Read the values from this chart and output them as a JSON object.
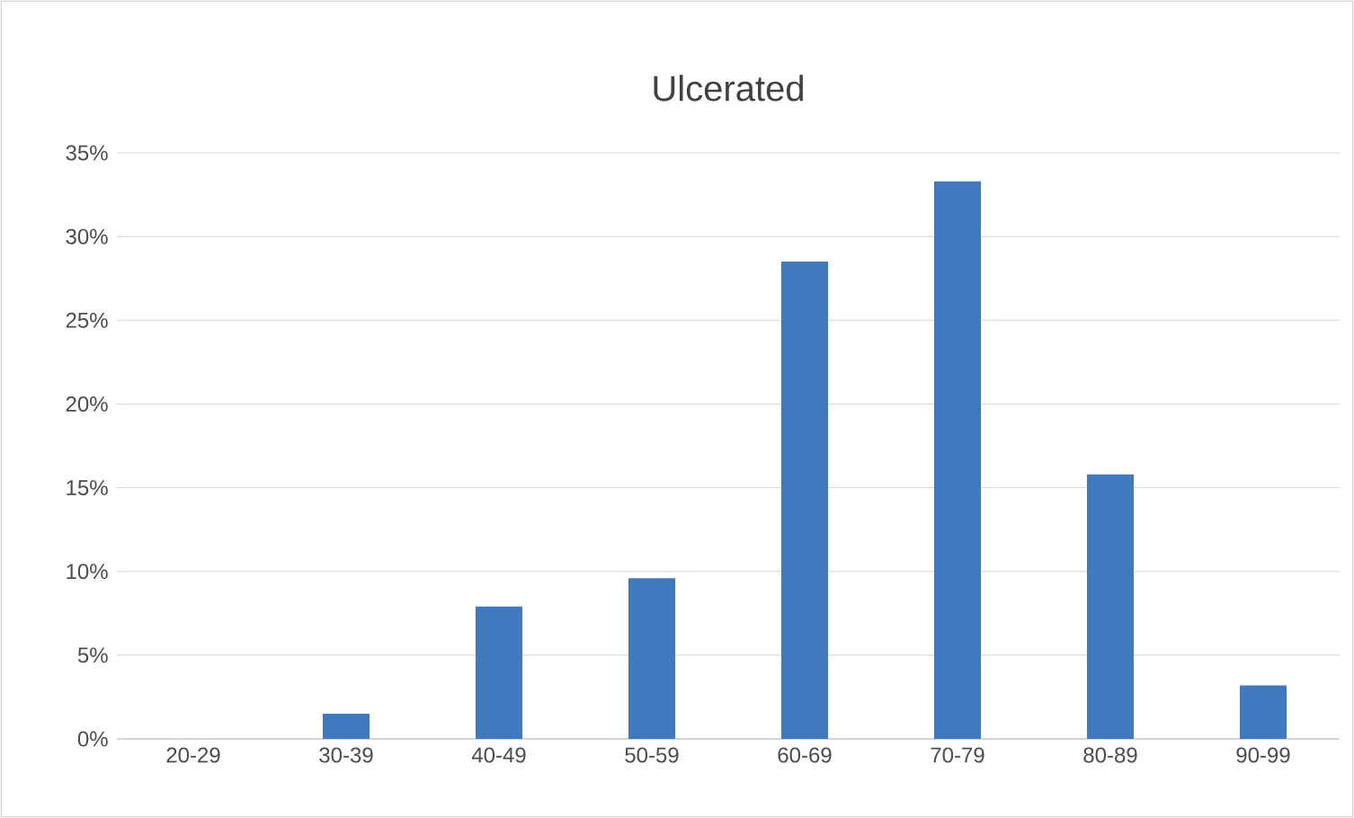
{
  "chart_data": {
    "type": "bar",
    "title": "Ulcerated",
    "categories": [
      "20-29",
      "30-39",
      "40-49",
      "50-59",
      "60-69",
      "70-79",
      "80-89",
      "90-99"
    ],
    "values": [
      0,
      1.5,
      7.9,
      9.6,
      28.5,
      33.3,
      15.8,
      3.2
    ],
    "color": "#4178be",
    "ylim": [
      0,
      35
    ],
    "yticks": [
      {
        "value": 0,
        "label": "0%"
      },
      {
        "value": 5,
        "label": "5%"
      },
      {
        "value": 10,
        "label": "10%"
      },
      {
        "value": 15,
        "label": "15%"
      },
      {
        "value": 20,
        "label": "20%"
      },
      {
        "value": 25,
        "label": "25%"
      },
      {
        "value": 30,
        "label": "30%"
      },
      {
        "value": 35,
        "label": "35%"
      }
    ],
    "grid": "y"
  }
}
